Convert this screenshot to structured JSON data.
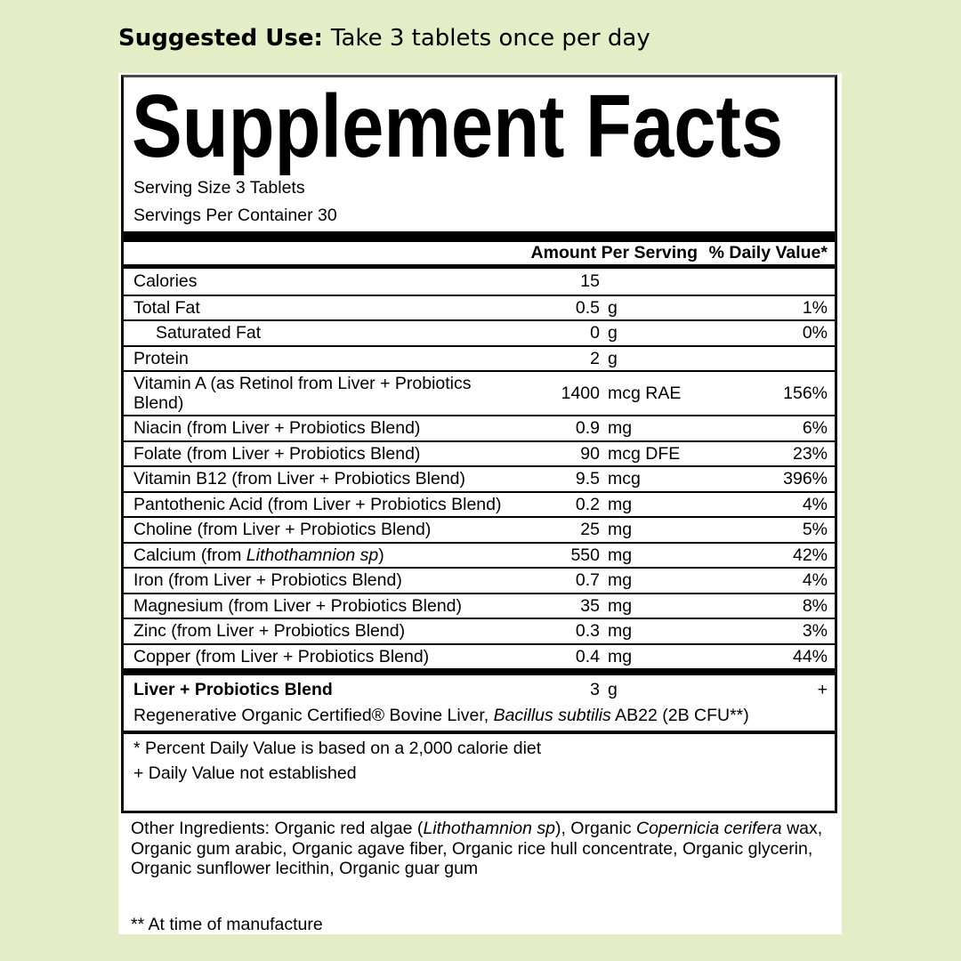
{
  "colors": {
    "page_bg": "#e4edc6",
    "panel_bg": "#ffffff",
    "text": "#000000",
    "rule": "#000000"
  },
  "suggested_use": {
    "label": "Suggested Use:",
    "text": "Take 3 tablets once per day"
  },
  "label": {
    "title": "Supplement Facts",
    "serving_size": "Serving Size 3 Tablets",
    "servings_per_container": "Servings Per Container 30",
    "columns": {
      "amount": "Amount Per Serving",
      "dv": "% Daily Value*"
    },
    "rows": [
      {
        "name": "Calories",
        "amount": "15",
        "unit": "",
        "dv": ""
      },
      {
        "name": "Total Fat",
        "amount": "0.5",
        "unit": "g",
        "dv": "1%"
      },
      {
        "name": "Saturated Fat",
        "amount": "0",
        "unit": "g",
        "dv": "0%",
        "indent": true
      },
      {
        "name": "Protein",
        "amount": "2",
        "unit": "g",
        "dv": ""
      },
      {
        "name": "Vitamin A (as Retinol from Liver + Probiotics Blend)",
        "amount": "1400",
        "unit": "mcg RAE",
        "dv": "156%"
      },
      {
        "name": "Niacin (from Liver + Probiotics Blend)",
        "amount": "0.9",
        "unit": "mg",
        "dv": "6%"
      },
      {
        "name": "Folate (from Liver + Probiotics Blend)",
        "amount": "90",
        "unit": "mcg DFE",
        "dv": "23%"
      },
      {
        "name": "Vitamin B12 (from Liver + Probiotics Blend)",
        "amount": "9.5",
        "unit": "mcg",
        "dv": "396%"
      },
      {
        "name": "Pantothenic Acid (from Liver + Probiotics Blend)",
        "amount": "0.2",
        "unit": "mg",
        "dv": "4%"
      },
      {
        "name": "Choline (from Liver + Probiotics Blend)",
        "amount": "25",
        "unit": "mg",
        "dv": "5%"
      },
      {
        "name": [
          {
            "t": "Calcium (from "
          },
          {
            "t": "Lithothamnion sp",
            "em": true
          },
          {
            "t": ")"
          }
        ],
        "amount": "550",
        "unit": "mg",
        "dv": "42%"
      },
      {
        "name": "Iron (from Liver + Probiotics Blend)",
        "amount": "0.7",
        "unit": "mg",
        "dv": "4%"
      },
      {
        "name": "Magnesium (from Liver + Probiotics Blend)",
        "amount": "35",
        "unit": "mg",
        "dv": "8%"
      },
      {
        "name": "Zinc (from Liver + Probiotics Blend)",
        "amount": "0.3",
        "unit": "mg",
        "dv": "3%"
      },
      {
        "name": "Copper (from Liver + Probiotics Blend)",
        "amount": "0.4",
        "unit": "mg",
        "dv": "44%"
      }
    ],
    "blend": {
      "name": "Liver + Probiotics Blend",
      "amount": "3",
      "unit": "g",
      "dv": "+",
      "description": [
        {
          "t": "Regenerative Organic Certified® Bovine Liver, "
        },
        {
          "t": "Bacillus subtilis",
          "em": true
        },
        {
          "t": " AB22 (2B CFU**)"
        }
      ]
    },
    "footnotes": [
      "* Percent Daily Value is based on a 2,000 calorie diet",
      "+ Daily Value not established"
    ]
  },
  "other_ingredients": [
    {
      "t": "Other Ingredients: Organic red algae ("
    },
    {
      "t": "Lithothamnion sp",
      "em": true
    },
    {
      "t": "), Organic "
    },
    {
      "t": "Copernicia cerifera",
      "em": true
    },
    {
      "t": " wax, Organic gum arabic, Organic agave fiber, Organic rice hull concentrate, Organic glycerin, Organic sunflower lecithin, Organic guar gum"
    }
  ],
  "manufacture_note": "** At time of manufacture"
}
